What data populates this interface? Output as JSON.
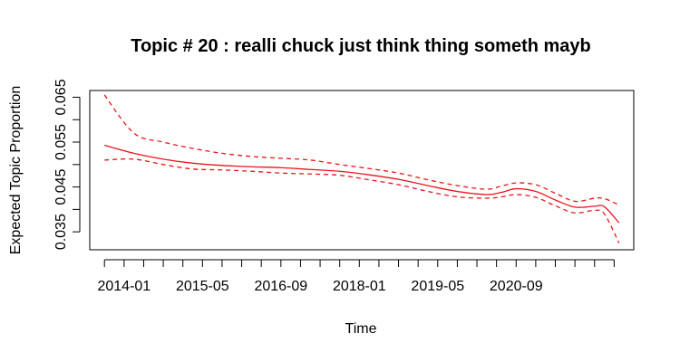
{
  "chart_data": {
    "type": "line",
    "title": "Topic # 20 :  realli chuck just think thing someth mayb",
    "xlabel": "Time",
    "ylabel": "Expected Topic Proportion",
    "x_range": [
      "2013-09",
      "2022-06"
    ],
    "xlim": [
      "2013-06",
      "2022-09"
    ],
    "ylim": [
      0.031,
      0.0665
    ],
    "yticks": [
      0.035,
      0.04,
      0.045,
      0.05,
      0.055,
      0.06,
      0.065
    ],
    "ytick_labels": [
      "0.035",
      "",
      "0.045",
      "",
      "0.055",
      "",
      "0.065"
    ],
    "xtick_labels": [
      "2014-01",
      "2015-05",
      "2016-09",
      "2018-01",
      "2019-05",
      "2020-09"
    ],
    "xtick_label_dates": [
      "2014-01",
      "2015-05",
      "2016-09",
      "2018-01",
      "2019-05",
      "2020-09"
    ],
    "minor_tick_dates": [
      "2013-09",
      "2014-01",
      "2014-05",
      "2014-09",
      "2015-01",
      "2015-05",
      "2015-09",
      "2016-01",
      "2016-05",
      "2016-09",
      "2017-01",
      "2017-05",
      "2017-09",
      "2018-01",
      "2018-05",
      "2018-09",
      "2019-01",
      "2019-05",
      "2019-09",
      "2020-01",
      "2020-05",
      "2020-09",
      "2021-01",
      "2021-05",
      "2021-09",
      "2022-01",
      "2022-05"
    ],
    "grid": false,
    "line_color": "#e8141b",
    "series": [
      {
        "style": "solid",
        "x": [
          "2013-09",
          "2014-03",
          "2014-09",
          "2015-03",
          "2015-09",
          "2016-03",
          "2016-09",
          "2017-03",
          "2017-09",
          "2018-03",
          "2018-09",
          "2019-03",
          "2019-09",
          "2020-03",
          "2020-06",
          "2020-09",
          "2021-01",
          "2021-05",
          "2021-09",
          "2022-01",
          "2022-03",
          "2022-06"
        ],
        "values": [
          0.0543,
          0.0525,
          0.0512,
          0.0503,
          0.0498,
          0.0495,
          0.0493,
          0.0489,
          0.0485,
          0.0477,
          0.0467,
          0.0453,
          0.044,
          0.0433,
          0.0438,
          0.0446,
          0.044,
          0.0421,
          0.0405,
          0.0407,
          0.0406,
          0.037
        ]
      },
      {
        "style": "dashed",
        "x": [
          "2013-09",
          "2014-03",
          "2014-09",
          "2015-03",
          "2015-09",
          "2016-03",
          "2016-09",
          "2017-03",
          "2017-09",
          "2018-03",
          "2018-09",
          "2019-03",
          "2019-09",
          "2020-03",
          "2020-06",
          "2020-09",
          "2021-01",
          "2021-05",
          "2021-09",
          "2022-01",
          "2022-03",
          "2022-06"
        ],
        "values": [
          0.0655,
          0.057,
          0.055,
          0.0536,
          0.0525,
          0.0518,
          0.0514,
          0.051,
          0.05,
          0.0491,
          0.0481,
          0.0466,
          0.0453,
          0.0445,
          0.0452,
          0.0459,
          0.0455,
          0.0436,
          0.0418,
          0.0425,
          0.0424,
          0.041
        ]
      },
      {
        "style": "dashed",
        "x": [
          "2013-09",
          "2014-03",
          "2014-09",
          "2015-03",
          "2015-09",
          "2016-03",
          "2016-09",
          "2017-03",
          "2017-09",
          "2018-03",
          "2018-09",
          "2019-03",
          "2019-09",
          "2020-03",
          "2020-06",
          "2020-09",
          "2021-01",
          "2021-05",
          "2021-09",
          "2022-01",
          "2022-03",
          "2022-06"
        ],
        "values": [
          0.051,
          0.0512,
          0.05,
          0.049,
          0.0488,
          0.0485,
          0.0481,
          0.0479,
          0.0476,
          0.0466,
          0.0455,
          0.044,
          0.0428,
          0.0425,
          0.0428,
          0.0433,
          0.0427,
          0.0408,
          0.0392,
          0.0398,
          0.039,
          0.0325
        ]
      }
    ]
  }
}
